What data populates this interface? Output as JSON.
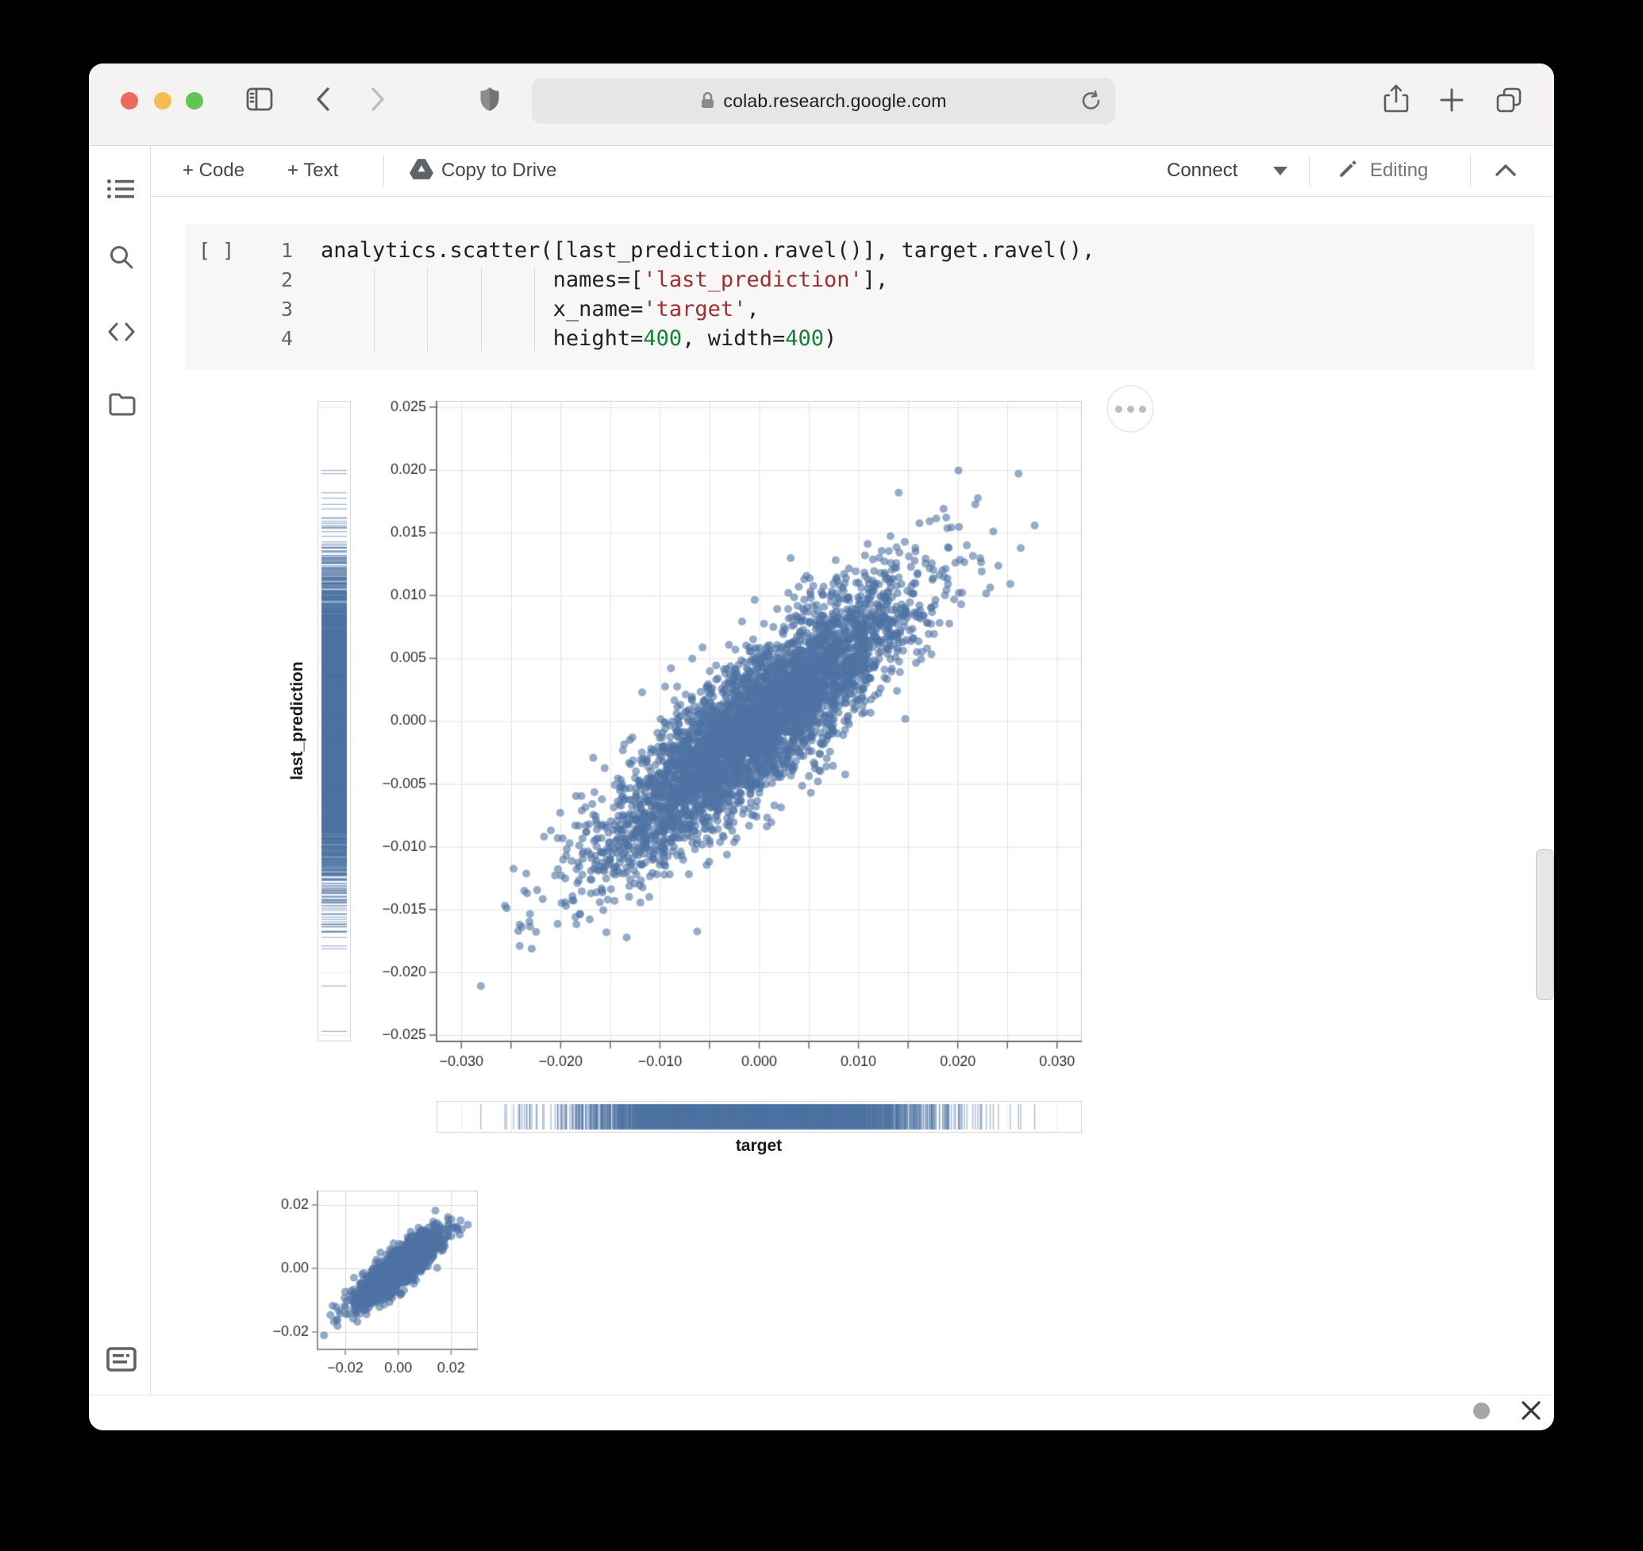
{
  "browser": {
    "url": "colab.research.google.com",
    "traffic_light_colors": [
      "#ec6a5e",
      "#f4bf50",
      "#61c555"
    ]
  },
  "toolbar": {
    "add_code": "+ Code",
    "add_text": "+ Text",
    "copy_to_drive": "Copy to Drive",
    "connect": "Connect",
    "editing": "Editing"
  },
  "icons": {
    "nav": [
      "sidebar-toggle",
      "back",
      "forward",
      "privacy-shield",
      "lock",
      "reload",
      "share",
      "new-tab",
      "tabs-overview"
    ],
    "sidebar": [
      "table-of-contents",
      "search",
      "code",
      "files",
      "terminal"
    ],
    "misc": [
      "drive",
      "pencil",
      "collapse",
      "output-options",
      "close-output"
    ]
  },
  "cell": {
    "run_placeholder": "[ ]",
    "lines": [
      {
        "num": "1",
        "segments": [
          {
            "type": "plain",
            "text": "analytics.scatter([last_prediction.ravel()], target.ravel(),"
          }
        ]
      },
      {
        "num": "2",
        "segments": [
          {
            "type": "plain",
            "text": "                  names=["
          },
          {
            "type": "string",
            "text": "'last_prediction'"
          },
          {
            "type": "plain",
            "text": "],"
          }
        ]
      },
      {
        "num": "3",
        "segments": [
          {
            "type": "plain",
            "text": "                  x_name="
          },
          {
            "type": "string",
            "text": "'target'"
          },
          {
            "type": "plain",
            "text": ","
          }
        ]
      },
      {
        "num": "4",
        "segments": [
          {
            "type": "plain",
            "text": "height="
          },
          {
            "type": "number",
            "text": "400"
          },
          {
            "type": "plain",
            "text": ", width="
          },
          {
            "type": "number",
            "text": "400"
          },
          {
            "type": "plain",
            "text": ")"
          }
        ],
        "indent": "                  "
      }
    ]
  },
  "chart_data": [
    {
      "type": "scatter",
      "title": "",
      "xlabel": "target",
      "ylabel": "last_prediction",
      "xlim": [
        -0.0325,
        0.0325
      ],
      "ylim": [
        -0.0255,
        0.0255
      ],
      "x_tick_values": [
        -0.03,
        -0.02,
        -0.01,
        0,
        0.01,
        0.02,
        0.03
      ],
      "x_tick_labels": [
        "−0.030",
        "−0.020",
        "−0.010",
        "0.000",
        "0.010",
        "0.020",
        "0.030"
      ],
      "y_tick_values": [
        0.025,
        0.02,
        0.015,
        0.01,
        0.005,
        0,
        -0.005,
        -0.01,
        -0.015,
        -0.02,
        -0.025
      ],
      "y_tick_labels": [
        "0.025",
        "0.020",
        "0.015",
        "0.010",
        "0.005",
        "0.000",
        "−0.005",
        "−0.010",
        "−0.015",
        "−0.020",
        "−0.025"
      ],
      "minor_step": 0.005,
      "grid": true,
      "rug": {
        "x": true,
        "y": true
      },
      "n_points": 4200,
      "seed": 7,
      "distribution": {
        "x_mean": 0,
        "y_mean": 0,
        "x_sd": 0.0078,
        "slope": 0.62,
        "noise_sd": 0.0028,
        "correlation": 0.87
      },
      "marker": {
        "color": "#4e73a3",
        "opacity": 0.6,
        "radius": 5
      },
      "legend": "none"
    },
    {
      "type": "scatter",
      "title": "",
      "xlabel": "",
      "ylabel": "",
      "xlim": [
        -0.0305,
        0.0301
      ],
      "ylim": [
        -0.0255,
        0.0245
      ],
      "x_tick_values": [
        -0.02,
        0,
        0.02
      ],
      "x_tick_labels": [
        "−0.02",
        "0.00",
        "0.02"
      ],
      "y_tick_values": [
        0.02,
        0,
        -0.02
      ],
      "y_tick_labels": [
        "0.02",
        "0.00",
        "−0.02"
      ],
      "grid": true,
      "n_points": 1700,
      "marker": {
        "color": "#4e73a3",
        "opacity": 0.6,
        "radius": 5
      },
      "note": "thumbnail of the same target vs last_prediction data"
    }
  ]
}
